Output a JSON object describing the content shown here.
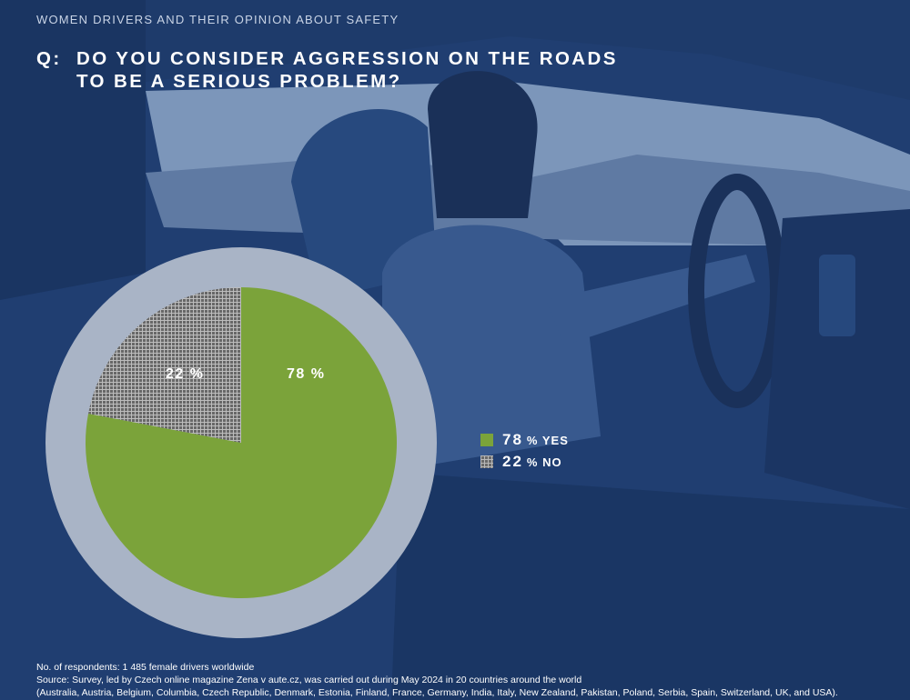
{
  "eyebrow": "WOMEN DRIVERS AND THEIR OPINION ABOUT SAFETY",
  "question": {
    "prefix": "Q:",
    "line1": "DO YOU CONSIDER AGGRESSION ON THE ROADS",
    "line2": "TO BE A SERIOUS PROBLEM?"
  },
  "colors": {
    "yes": "#7ba33a",
    "no": "#6a6a6a",
    "ring": "#a9b4c6",
    "background": "#1e3a6b"
  },
  "chart_data": {
    "type": "pie",
    "slices": [
      {
        "label": "YES",
        "value": 78,
        "display": "78 %",
        "pattern": "solid"
      },
      {
        "label": "NO",
        "value": 22,
        "display": "22 %",
        "pattern": "grid"
      }
    ],
    "legend_position": "right"
  },
  "legend": [
    {
      "num": "78",
      "text": "% YES"
    },
    {
      "num": "22",
      "text": "% NO"
    }
  ],
  "footer": {
    "line1": "No. of respondents: 1 485 female drivers worldwide",
    "line2": "Source: Survey, led by Czech online magazine Zena v aute.cz, was carried out during May 2024 in 20 countries around the world",
    "line3": "(Australia, Austria, Belgium, Columbia, Czech Republic, Denmark, Estonia, Finland, France, Germany, India, Italy, New Zealand, Pakistan, Poland, Serbia, Spain, Switzerland, UK, and USA)."
  }
}
